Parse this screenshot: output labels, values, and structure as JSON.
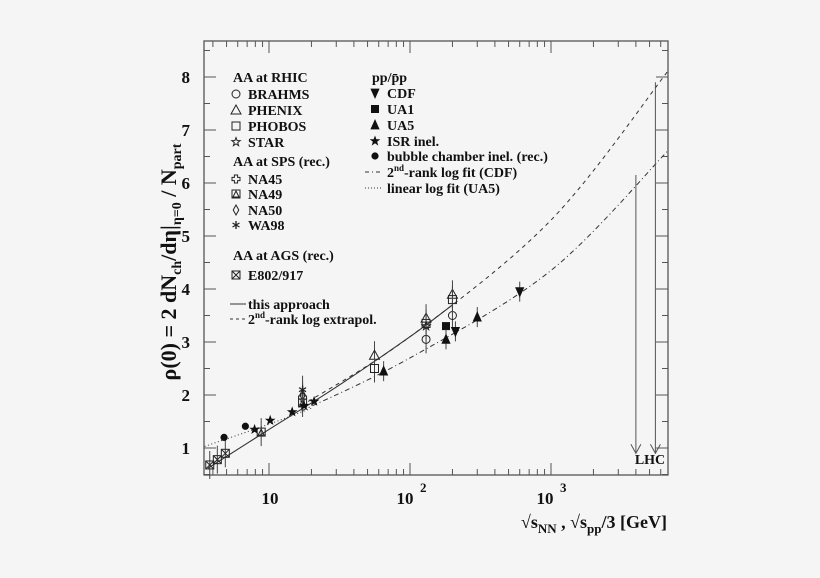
{
  "chart_data": {
    "type": "scatter",
    "title": "",
    "xlabel": "√s_NN , √s_pp/3  [GeV]",
    "ylabel": "ρ(0) = 2 dN_ch/dη|_η=0 / N_part",
    "xscale": "log",
    "xlim": [
      3.5,
      6700
    ],
    "ylim": [
      0.5,
      8.9
    ],
    "xticks": [
      "10",
      "10^2",
      "10^3"
    ],
    "yticks": [
      "1",
      "2",
      "3",
      "4",
      "5",
      "6",
      "7",
      "8"
    ],
    "grid": false,
    "legend_position": "upper-left inside",
    "annotations": [
      "LHC"
    ],
    "legend": {
      "aa_rhic": {
        "header": "AA at RHIC",
        "items": [
          {
            "marker": "open-circle",
            "label": "BRAHMS"
          },
          {
            "marker": "open-triangle",
            "label": "PHENIX"
          },
          {
            "marker": "open-square",
            "label": "PHOBOS"
          },
          {
            "marker": "open-star",
            "label": "STAR"
          }
        ]
      },
      "aa_sps": {
        "header": "AA at SPS (rec.)",
        "items": [
          {
            "marker": "open-cross",
            "label": "NA45"
          },
          {
            "marker": "box-triangle",
            "label": "NA49"
          },
          {
            "marker": "open-diamond",
            "label": "NA50"
          },
          {
            "marker": "asterisk",
            "label": "WA98"
          }
        ]
      },
      "aa_ags": {
        "header": "AA at AGS (rec.)",
        "items": [
          {
            "marker": "box-x",
            "label": "E802/917"
          }
        ]
      },
      "lines": [
        {
          "style": "solid",
          "label": "this approach"
        },
        {
          "style": "dashed",
          "label": "2nd-rank log extrapol.",
          "sup": "nd",
          "pre": "2",
          "post": "-rank log extrapol."
        }
      ],
      "pp": {
        "header": "pp/p̄p",
        "items": [
          {
            "marker": "filled-triangle-down",
            "label": "CDF"
          },
          {
            "marker": "filled-square",
            "label": "UA1"
          },
          {
            "marker": "filled-triangle-up",
            "label": "UA5"
          },
          {
            "marker": "filled-star",
            "label": "ISR inel."
          },
          {
            "marker": "filled-circle",
            "label": "bubble chamber inel. (rec.)"
          },
          {
            "marker": "dash-dot-line",
            "label": "2nd-rank log fit (CDF)",
            "pre": "2",
            "sup": "nd",
            "post": "-rank log fit (CDF)"
          },
          {
            "marker": "dotted-line",
            "label": "linear log fit (UA5)"
          }
        ]
      }
    },
    "series": [
      {
        "name": "BRAHMS",
        "marker": "open-circle",
        "points": [
          [
            130,
            3.05
          ],
          [
            200,
            3.5
          ]
        ]
      },
      {
        "name": "PHENIX",
        "marker": "open-triangle",
        "points": [
          [
            56,
            2.75
          ],
          [
            130,
            3.45
          ],
          [
            200,
            3.9
          ]
        ]
      },
      {
        "name": "PHOBOS",
        "marker": "open-square",
        "points": [
          [
            56,
            2.5
          ],
          [
            130,
            3.35
          ],
          [
            200,
            3.8
          ]
        ]
      },
      {
        "name": "STAR",
        "marker": "open-star",
        "points": [
          [
            130,
            3.3
          ]
        ]
      },
      {
        "name": "NA45",
        "marker": "open-cross",
        "points": [
          [
            17.3,
            1.95
          ]
        ]
      },
      {
        "name": "NA49",
        "marker": "box-triangle",
        "points": [
          [
            8.8,
            1.3
          ],
          [
            17.3,
            1.85
          ]
        ]
      },
      {
        "name": "NA50",
        "marker": "open-diamond",
        "points": [
          [
            17.3,
            2.0
          ]
        ]
      },
      {
        "name": "WA98",
        "marker": "asterisk",
        "points": [
          [
            17.3,
            2.1
          ]
        ]
      },
      {
        "name": "E802/917",
        "marker": "box-x",
        "points": [
          [
            3.8,
            0.68
          ],
          [
            4.3,
            0.78
          ],
          [
            4.9,
            0.9
          ]
        ]
      },
      {
        "name": "CDF",
        "marker": "filled-triangle-down",
        "points": [
          [
            210,
            3.2
          ],
          [
            600,
            3.95
          ]
        ]
      },
      {
        "name": "UA1",
        "marker": "filled-square",
        "points": [
          [
            180,
            3.3
          ]
        ]
      },
      {
        "name": "UA5",
        "marker": "filled-triangle-up",
        "points": [
          [
            65,
            2.45
          ],
          [
            180,
            3.05
          ],
          [
            300,
            3.47
          ]
        ]
      },
      {
        "name": "ISR inel.",
        "marker": "filled-star",
        "points": [
          [
            7.9,
            1.35
          ],
          [
            10.2,
            1.52
          ],
          [
            14.6,
            1.68
          ],
          [
            17.7,
            1.8
          ],
          [
            20.9,
            1.88
          ]
        ]
      },
      {
        "name": "bubble chamber inel. (rec.)",
        "marker": "filled-circle",
        "points": [
          [
            4.8,
            1.2
          ],
          [
            6.8,
            1.41
          ]
        ]
      }
    ],
    "curves": [
      {
        "name": "this approach",
        "style": "solid",
        "points": [
          [
            3.7,
            0.62
          ],
          [
            10,
            1.35
          ],
          [
            30,
            2.15
          ],
          [
            100,
            3.1
          ],
          [
            200,
            3.7
          ]
        ]
      },
      {
        "name": "2nd-rank log extrapol.",
        "style": "dashed",
        "points": [
          [
            17,
            1.8
          ],
          [
            100,
            3.1
          ],
          [
            1000,
            5.3
          ],
          [
            6700,
            8.1
          ]
        ]
      },
      {
        "name": "2nd-rank log fit (CDF)",
        "style": "dash-dot",
        "points": [
          [
            17,
            1.7
          ],
          [
            100,
            2.7
          ],
          [
            1000,
            4.35
          ],
          [
            6700,
            6.6
          ]
        ]
      },
      {
        "name": "linear log fit (UA5)",
        "style": "dotted",
        "points": [
          [
            3.5,
            1.03
          ],
          [
            10,
            1.45
          ],
          [
            20,
            1.75
          ]
        ]
      }
    ],
    "lhc_arrows": [
      {
        "x": 4000,
        "y_from": 6.15,
        "y_to": 0.9
      },
      {
        "x": 5500,
        "y_from": 7.9,
        "y_to": 0.9
      }
    ]
  },
  "axis": {
    "ylabel_main": "ρ(0) = 2 dN",
    "ylabel_sub1": "ch",
    "ylabel_mid": "/dη|",
    "ylabel_sub2": "η=0",
    "ylabel_end": " / N",
    "ylabel_sub3": "part",
    "xlabel_a": "√s",
    "xlabel_sub_a": "NN",
    "xlabel_b": " , √s",
    "xlabel_sub_b": "pp",
    "xlabel_c": "/3  [GeV]",
    "xtick_10": "10",
    "xtick_100_base": "10",
    "xtick_100_exp": "2",
    "xtick_1000_base": "10",
    "xtick_1000_exp": "3",
    "lhc_label": "LHC"
  }
}
